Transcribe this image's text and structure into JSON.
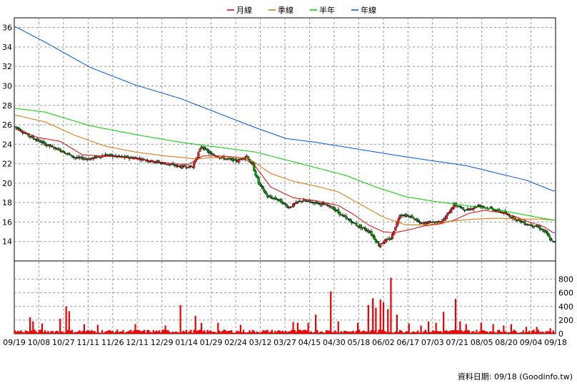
{
  "legend": [
    {
      "name": "月線",
      "color": "#e00000"
    },
    {
      "name": "季線",
      "color": "#e07000"
    },
    {
      "name": "半年",
      "color": "#00cc00"
    },
    {
      "name": "年線",
      "color": "#0055dd"
    }
  ],
  "footer_text": "資料日期: 09/18 (Goodinfo.tw)",
  "chart_data": {
    "type": "candlestick+volume",
    "price_axis": {
      "ylim": [
        12,
        37
      ],
      "ticks": [
        14,
        16,
        18,
        20,
        22,
        24,
        26,
        28,
        30,
        32,
        34,
        36
      ],
      "side": "left"
    },
    "volume_axis": {
      "ylim": [
        0,
        900
      ],
      "ticks": [
        0,
        200,
        400,
        600,
        800
      ],
      "side": "right"
    },
    "x_tick_labels": [
      "09/19",
      "10/08",
      "10/27",
      "11/11",
      "11/26",
      "12/11",
      "12/29",
      "01/14",
      "01/29",
      "02/24",
      "03/12",
      "03/27",
      "04/15",
      "04/30",
      "05/18",
      "06/02",
      "06/17",
      "07/03",
      "07/21",
      "08/05",
      "08/20",
      "09/04",
      "09/18"
    ],
    "grid": true,
    "price_keypoints": [
      [
        0,
        25.8
      ],
      [
        10,
        24.8
      ],
      [
        20,
        24.0
      ],
      [
        30,
        23.4
      ],
      [
        40,
        22.6
      ],
      [
        50,
        22.5
      ],
      [
        60,
        22.9
      ],
      [
        70,
        22.7
      ],
      [
        80,
        22.6
      ],
      [
        90,
        22.3
      ],
      [
        100,
        22.0
      ],
      [
        110,
        21.7
      ],
      [
        118,
        21.7
      ],
      [
        124,
        23.8
      ],
      [
        130,
        23.0
      ],
      [
        140,
        22.5
      ],
      [
        148,
        22.3
      ],
      [
        154,
        22.8
      ],
      [
        158,
        21.8
      ],
      [
        162,
        20.0
      ],
      [
        168,
        18.6
      ],
      [
        175,
        18.3
      ],
      [
        182,
        17.5
      ],
      [
        190,
        18.2
      ],
      [
        200,
        18.0
      ],
      [
        210,
        17.6
      ],
      [
        218,
        16.6
      ],
      [
        228,
        15.6
      ],
      [
        236,
        15.0
      ],
      [
        242,
        13.6
      ],
      [
        245,
        14.0
      ],
      [
        250,
        14.3
      ],
      [
        256,
        16.8
      ],
      [
        264,
        16.5
      ],
      [
        270,
        15.8
      ],
      [
        275,
        16.0
      ],
      [
        280,
        16.0
      ],
      [
        285,
        16.2
      ],
      [
        292,
        17.8
      ],
      [
        300,
        17.2
      ],
      [
        308,
        17.7
      ],
      [
        316,
        17.4
      ],
      [
        324,
        17.0
      ],
      [
        332,
        16.4
      ],
      [
        340,
        15.8
      ],
      [
        348,
        15.5
      ],
      [
        353,
        14.9
      ],
      [
        356,
        14.2
      ],
      [
        358,
        13.9
      ]
    ],
    "price_noise": 0.22,
    "series": [
      {
        "name": "月線",
        "color": "#e00000",
        "points": [
          [
            0,
            25.6
          ],
          [
            15,
            24.7
          ],
          [
            30,
            24.3
          ],
          [
            45,
            22.9
          ],
          [
            60,
            22.8
          ],
          [
            75,
            22.6
          ],
          [
            90,
            22.3
          ],
          [
            105,
            22.0
          ],
          [
            115,
            21.9
          ],
          [
            125,
            22.8
          ],
          [
            135,
            22.8
          ],
          [
            145,
            22.7
          ],
          [
            152,
            22.6
          ],
          [
            160,
            21.7
          ],
          [
            170,
            19.6
          ],
          [
            185,
            18.5
          ],
          [
            200,
            18.2
          ],
          [
            215,
            17.7
          ],
          [
            225,
            16.8
          ],
          [
            235,
            15.7
          ],
          [
            245,
            15.0
          ],
          [
            252,
            14.9
          ],
          [
            262,
            15.2
          ],
          [
            272,
            15.6
          ],
          [
            282,
            15.8
          ],
          [
            292,
            16.2
          ],
          [
            302,
            16.9
          ],
          [
            312,
            17.2
          ],
          [
            322,
            17.0
          ],
          [
            332,
            16.6
          ],
          [
            342,
            16.0
          ],
          [
            352,
            15.5
          ],
          [
            358,
            14.9
          ]
        ]
      },
      {
        "name": "季線",
        "color": "#e07000",
        "points": [
          [
            0,
            27.0
          ],
          [
            20,
            26.3
          ],
          [
            40,
            24.9
          ],
          [
            60,
            23.8
          ],
          [
            80,
            23.2
          ],
          [
            100,
            22.8
          ],
          [
            120,
            22.5
          ],
          [
            140,
            22.7
          ],
          [
            155,
            22.6
          ],
          [
            170,
            21.0
          ],
          [
            185,
            20.2
          ],
          [
            200,
            19.7
          ],
          [
            215,
            19.1
          ],
          [
            230,
            17.8
          ],
          [
            245,
            16.5
          ],
          [
            260,
            15.7
          ],
          [
            275,
            15.7
          ],
          [
            290,
            16.1
          ],
          [
            305,
            16.3
          ],
          [
            320,
            16.4
          ],
          [
            335,
            16.3
          ],
          [
            350,
            16.3
          ],
          [
            358,
            16.2
          ]
        ]
      },
      {
        "name": "半年",
        "color": "#00cc00",
        "points": [
          [
            0,
            27.7
          ],
          [
            20,
            27.3
          ],
          [
            50,
            25.9
          ],
          [
            80,
            25.0
          ],
          [
            110,
            24.2
          ],
          [
            140,
            23.6
          ],
          [
            160,
            23.2
          ],
          [
            180,
            22.4
          ],
          [
            200,
            21.6
          ],
          [
            220,
            20.8
          ],
          [
            240,
            19.6
          ],
          [
            260,
            18.6
          ],
          [
            280,
            18.1
          ],
          [
            300,
            17.7
          ],
          [
            320,
            17.3
          ],
          [
            340,
            16.7
          ],
          [
            358,
            16.2
          ]
        ]
      },
      {
        "name": "年線",
        "color": "#0055dd",
        "points": [
          [
            0,
            36.1
          ],
          [
            20,
            34.5
          ],
          [
            50,
            31.9
          ],
          [
            80,
            30.1
          ],
          [
            110,
            28.7
          ],
          [
            140,
            26.9
          ],
          [
            160,
            25.7
          ],
          [
            180,
            24.6
          ],
          [
            200,
            24.2
          ],
          [
            240,
            23.2
          ],
          [
            260,
            22.7
          ],
          [
            300,
            21.8
          ],
          [
            340,
            20.3
          ],
          [
            358,
            19.2
          ]
        ]
      }
    ],
    "volume_spikes": [
      [
        10,
        240
      ],
      [
        12,
        180
      ],
      [
        18,
        150
      ],
      [
        30,
        220
      ],
      [
        34,
        400
      ],
      [
        36,
        330
      ],
      [
        46,
        140
      ],
      [
        55,
        130
      ],
      [
        80,
        140
      ],
      [
        100,
        120
      ],
      [
        110,
        420
      ],
      [
        120,
        260
      ],
      [
        124,
        160
      ],
      [
        135,
        160
      ],
      [
        150,
        130
      ],
      [
        185,
        170
      ],
      [
        188,
        160
      ],
      [
        195,
        160
      ],
      [
        200,
        280
      ],
      [
        210,
        620
      ],
      [
        215,
        180
      ],
      [
        228,
        160
      ],
      [
        235,
        420
      ],
      [
        238,
        520
      ],
      [
        240,
        380
      ],
      [
        243,
        500
      ],
      [
        245,
        460
      ],
      [
        248,
        360
      ],
      [
        250,
        820
      ],
      [
        254,
        280
      ],
      [
        262,
        150
      ],
      [
        270,
        120
      ],
      [
        275,
        180
      ],
      [
        280,
        160
      ],
      [
        285,
        320
      ],
      [
        293,
        510
      ],
      [
        296,
        180
      ],
      [
        300,
        140
      ],
      [
        310,
        160
      ],
      [
        318,
        140
      ],
      [
        325,
        120
      ],
      [
        330,
        140
      ],
      [
        340,
        100
      ],
      [
        347,
        100
      ],
      [
        356,
        80
      ]
    ],
    "volume_base": 40,
    "bars": 360
  }
}
